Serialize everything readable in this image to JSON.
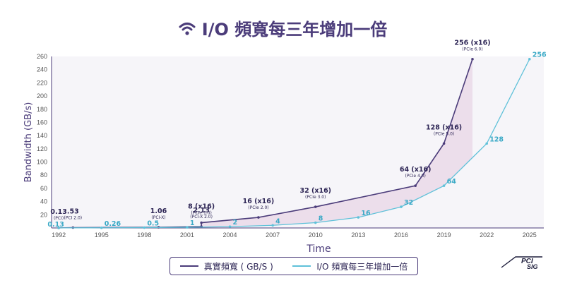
{
  "title": "I/O 頻寬每三年增加一倍",
  "logo_text": "PCI SIG",
  "chart_data": {
    "type": "line",
    "xlabel": "Time",
    "ylabel": "Bandwidth (GB/s)",
    "xlim": [
      1991.5,
      2026
    ],
    "ylim": [
      0,
      260
    ],
    "x_ticks": [
      1992,
      1995,
      1998,
      2001,
      2004,
      2007,
      2010,
      2013,
      2016,
      2019,
      2022,
      2025
    ],
    "y_ticks": [
      20,
      40,
      60,
      80,
      100,
      120,
      140,
      160,
      180,
      200,
      220,
      240,
      260
    ],
    "series": [
      {
        "name": "真實頻寬 ( GB/S )",
        "color": "#4b3c7a",
        "points": [
          {
            "x": 1992,
            "y": 0.13,
            "label": "0.13",
            "sublabel": "(PCI)"
          },
          {
            "x": 1993,
            "y": 0.53,
            "label": ".53",
            "sublabel": "(PCI 2.0)"
          },
          {
            "x": 1999,
            "y": 1.06,
            "label": "1.06",
            "sublabel": "(PCI-X)"
          },
          {
            "x": 2002,
            "y": 2.13,
            "label": "2.13",
            "sublabel": "(PCI-X 2.0)"
          },
          {
            "x": 2002,
            "y": 8,
            "label": "8 (x16)",
            "sublabel": "(PCIe 1.0)"
          },
          {
            "x": 2006,
            "y": 16,
            "label": "16 (x16)",
            "sublabel": "(PCIe 2.0)"
          },
          {
            "x": 2010,
            "y": 32,
            "label": "32 (x16)",
            "sublabel": "(PCIe 3.0)"
          },
          {
            "x": 2017,
            "y": 64,
            "label": "64 (x16)",
            "sublabel": "(PCIe 4.0)"
          },
          {
            "x": 2019,
            "y": 128,
            "label": "128 (x16)",
            "sublabel": "(PCIe 5.0)"
          },
          {
            "x": 2021,
            "y": 256,
            "label": "256 (x16)",
            "sublabel": "(PCIe 6.0)"
          }
        ]
      },
      {
        "name": "I/O 頻寬每三年增加一倍",
        "color": "#5fc1d9",
        "points": [
          {
            "x": 1992,
            "y": 0.13,
            "label": "0.13"
          },
          {
            "x": 1995,
            "y": 0.26,
            "label": "0.26"
          },
          {
            "x": 1998,
            "y": 0.5,
            "label": "0.5"
          },
          {
            "x": 2001,
            "y": 1,
            "label": "1"
          },
          {
            "x": 2004,
            "y": 2,
            "label": "2"
          },
          {
            "x": 2007,
            "y": 4,
            "label": "4"
          },
          {
            "x": 2010,
            "y": 8,
            "label": "8"
          },
          {
            "x": 2013,
            "y": 16,
            "label": "16"
          },
          {
            "x": 2016,
            "y": 32,
            "label": "32"
          },
          {
            "x": 2019,
            "y": 64,
            "label": "64"
          },
          {
            "x": 2022,
            "y": 128,
            "label": "128"
          },
          {
            "x": 2025,
            "y": 256,
            "label": "256"
          }
        ]
      }
    ],
    "legend": {
      "position": "bottom-center"
    },
    "grid": false
  }
}
